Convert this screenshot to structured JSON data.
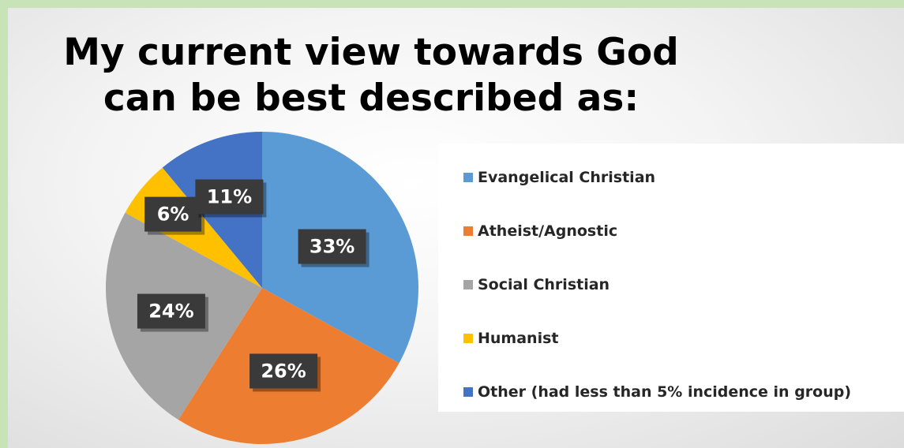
{
  "chart_data": {
    "type": "pie",
    "title": "My current view towards God can be best described as:",
    "title_lines": [
      "My current view towards God",
      "can be best described as:"
    ],
    "legend_position": "right",
    "start_angle_deg": 0,
    "direction": "clockwise",
    "slices": [
      {
        "name": "Evangelical Christian",
        "value": 33,
        "label": "33%",
        "color": "#5b9bd5"
      },
      {
        "name": "Atheist/Agnostic",
        "value": 26,
        "label": "26%",
        "color": "#ed7d31"
      },
      {
        "name": "Social Christian",
        "value": 24,
        "label": "24%",
        "color": "#a5a5a5"
      },
      {
        "name": "Humanist",
        "value": 6,
        "label": "6%",
        "color": "#ffc000"
      },
      {
        "name": "Other (had less than 5% incidence in group)",
        "value": 11,
        "label": "11%",
        "color": "#4472c4"
      }
    ]
  }
}
